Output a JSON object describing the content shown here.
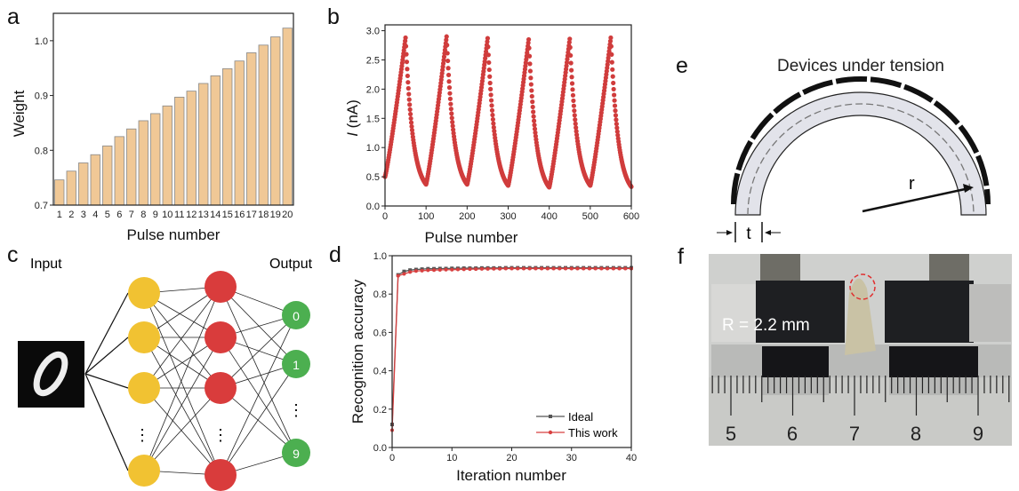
{
  "panels": {
    "a": "a",
    "b": "b",
    "c": "c",
    "d": "d",
    "e": "e",
    "f": "f"
  },
  "chart_data": [
    {
      "id": "a",
      "type": "bar",
      "categories": [
        "1",
        "2",
        "3",
        "4",
        "5",
        "6",
        "7",
        "8",
        "9",
        "10",
        "11",
        "12",
        "13",
        "14",
        "15",
        "16",
        "17",
        "18",
        "19",
        "20"
      ],
      "values": [
        0.746,
        0.762,
        0.777,
        0.792,
        0.808,
        0.825,
        0.839,
        0.854,
        0.867,
        0.881,
        0.897,
        0.908,
        0.922,
        0.936,
        0.949,
        0.963,
        0.978,
        0.992,
        1.007,
        1.023
      ],
      "xlabel": "Pulse number",
      "ylabel": "Weight",
      "ylim": [
        0.7,
        1.05
      ],
      "yticks": [
        "0.7",
        "0.8",
        "0.9",
        "1.0"
      ],
      "color": "#f0c896"
    },
    {
      "id": "b",
      "type": "scatter",
      "xlabel": "Pulse number",
      "ylabel_italic": "I",
      "ylabel_rest": " (nA)",
      "xlim": [
        0,
        600
      ],
      "ylim": [
        0,
        3.1
      ],
      "xticks": [
        "0",
        "100",
        "200",
        "300",
        "400",
        "500",
        "600"
      ],
      "yticks": [
        "0.0",
        "0.5",
        "1.0",
        "1.5",
        "2.0",
        "2.5",
        "3.0"
      ],
      "cycle_starts": [
        [
          0,
          0.5
        ],
        [
          100,
          0.37
        ],
        [
          200,
          0.37
        ],
        [
          300,
          0.35
        ],
        [
          400,
          0.32
        ],
        [
          500,
          0.35
        ],
        [
          600,
          0.33
        ]
      ],
      "peaks": [
        [
          50,
          2.88
        ],
        [
          150,
          2.9
        ],
        [
          250,
          2.87
        ],
        [
          350,
          2.85
        ],
        [
          450,
          2.86
        ],
        [
          550,
          2.88
        ]
      ],
      "color": "#d03c3c"
    },
    {
      "id": "d",
      "type": "line",
      "xlabel": "Iteration number",
      "ylabel": "Recognition accuracy",
      "xlim": [
        0,
        40
      ],
      "ylim": [
        0,
        1
      ],
      "xticks": [
        "0",
        "10",
        "20",
        "30",
        "40"
      ],
      "yticks": [
        "0.0",
        "0.2",
        "0.4",
        "0.6",
        "0.8",
        "1.0"
      ],
      "legend": "bottom-right",
      "series": [
        {
          "name": "Ideal",
          "color": "#555555",
          "values": [
            0.12,
            0.9,
            0.918,
            0.925,
            0.928,
            0.93,
            0.932,
            0.932,
            0.933,
            0.933,
            0.934,
            0.934,
            0.935,
            0.935,
            0.935,
            0.936,
            0.936,
            0.936,
            0.936,
            0.937,
            0.937,
            0.937,
            0.937,
            0.937,
            0.937,
            0.937,
            0.937,
            0.937,
            0.937,
            0.937,
            0.937,
            0.937,
            0.937,
            0.937,
            0.937,
            0.937,
            0.937,
            0.937,
            0.937,
            0.937,
            0.937
          ]
        },
        {
          "name": "This work",
          "color": "#d84040",
          "values": [
            0.09,
            0.895,
            0.905,
            0.915,
            0.92,
            0.922,
            0.924,
            0.925,
            0.926,
            0.927,
            0.927,
            0.928,
            0.929,
            0.93,
            0.93,
            0.931,
            0.931,
            0.932,
            0.932,
            0.933,
            0.933,
            0.933,
            0.933,
            0.933,
            0.933,
            0.933,
            0.933,
            0.933,
            0.933,
            0.933,
            0.933,
            0.933,
            0.933,
            0.933,
            0.933,
            0.933,
            0.933,
            0.933,
            0.933,
            0.933,
            0.933
          ]
        }
      ]
    }
  ],
  "network": {
    "input_label": "Input",
    "output_label": "Output",
    "outputs": [
      "0",
      "1",
      "9"
    ],
    "ellipsis": "⋮"
  },
  "tension": {
    "title": "Devices under tension",
    "radius_label": "r",
    "thickness_label": "t"
  },
  "photo": {
    "annotation": "R = 2.2 mm",
    "ruler_numbers": [
      "5",
      "6",
      "7",
      "8",
      "9"
    ]
  }
}
